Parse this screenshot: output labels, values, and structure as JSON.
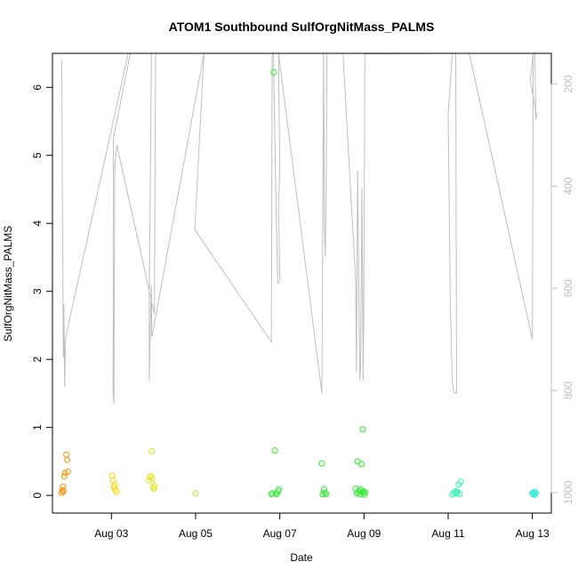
{
  "chart_data": {
    "type": "scatter",
    "title": "ATOM1 Southbound SulfOrgNitMass_PALMS",
    "xlabel": "Date",
    "ylabel": "SulfOrgNitMass_PALMS",
    "x_ticks": [
      "Aug 03",
      "Aug 05",
      "Aug 07",
      "Aug 09",
      "Aug 11",
      "Aug 13"
    ],
    "x_tick_values": [
      2,
      4,
      6,
      8,
      10,
      12
    ],
    "xlim": [
      0.6,
      12.45
    ],
    "ylim": [
      -0.26,
      6.5
    ],
    "y_ticks": [
      0,
      1,
      2,
      3,
      4,
      5,
      6
    ],
    "y2_ticks": [
      200,
      400,
      600,
      800,
      1000
    ],
    "y2lim": [
      1040,
      140
    ],
    "y2_reversed": true,
    "grid": false,
    "legend": "none",
    "colors": {
      "axis": "#000000",
      "secondary_line": "#bebebe",
      "secondary_axis_text": "#bebebe"
    },
    "series": [
      {
        "marker": "open-circle",
        "color": "#ff8c00",
        "points": [
          [
            0.82,
            0.04
          ],
          [
            0.84,
            0.08
          ],
          [
            0.85,
            0.13
          ],
          [
            0.86,
            0.06
          ],
          [
            0.88,
            0.28
          ],
          [
            0.9,
            0.33
          ],
          [
            0.93,
            0.6
          ],
          [
            0.95,
            0.52
          ],
          [
            0.97,
            0.35
          ]
        ]
      },
      {
        "marker": "open-circle",
        "color": "#ffd700",
        "points": [
          [
            2.02,
            0.29
          ],
          [
            2.04,
            0.22
          ],
          [
            2.06,
            0.12
          ],
          [
            2.08,
            0.15
          ],
          [
            2.1,
            0.08
          ],
          [
            2.12,
            0.05
          ]
        ]
      },
      {
        "marker": "open-circle",
        "color": "#dfe619",
        "points": [
          [
            2.9,
            0.22
          ],
          [
            2.92,
            0.27
          ],
          [
            2.94,
            0.28
          ],
          [
            2.96,
            0.65
          ],
          [
            2.97,
            0.24
          ],
          [
            2.99,
            0.12
          ],
          [
            3.01,
            0.1
          ],
          [
            3.03,
            0.14
          ]
        ]
      },
      {
        "marker": "open-circle",
        "color": "#a9ec19",
        "points": [
          [
            4.0,
            0.03
          ]
        ]
      },
      {
        "marker": "open-circle",
        "color": "#33ee33",
        "points": [
          [
            5.8,
            0.02
          ],
          [
            5.83,
            0.03
          ],
          [
            5.86,
            6.22
          ],
          [
            5.88,
            0.66
          ],
          [
            5.9,
            0.03
          ],
          [
            5.93,
            0.02
          ],
          [
            5.96,
            0.06
          ],
          [
            5.98,
            0.09
          ]
        ]
      },
      {
        "marker": "open-circle",
        "color": "#22f022",
        "points": [
          [
            7.0,
            0.47
          ],
          [
            7.02,
            0.02
          ],
          [
            7.05,
            0.09
          ],
          [
            7.07,
            0.04
          ],
          [
            7.1,
            0.02
          ],
          [
            7.8,
            0.1
          ],
          [
            7.83,
            0.03
          ],
          [
            7.85,
            0.5
          ],
          [
            7.88,
            0.06
          ],
          [
            7.9,
            0.02
          ],
          [
            7.92,
            0.09
          ],
          [
            7.94,
            0.46
          ],
          [
            7.96,
            0.06
          ],
          [
            7.97,
            0.97
          ],
          [
            7.99,
            0.04
          ],
          [
            8.01,
            0.01
          ],
          [
            8.03,
            0.05
          ]
        ]
      },
      {
        "marker": "open-circle",
        "color": "#2af7b3",
        "points": [
          [
            10.1,
            0.01
          ],
          [
            10.14,
            0.04
          ],
          [
            10.18,
            0.06
          ],
          [
            10.2,
            0.03
          ],
          [
            10.22,
            0.05
          ],
          [
            10.25,
            0.16
          ],
          [
            10.27,
            0.02
          ],
          [
            10.3,
            0.2
          ]
        ]
      },
      {
        "marker": "open-circle",
        "color": "#22ecd0",
        "points": [
          [
            12.0,
            0.03
          ],
          [
            12.02,
            0.02
          ],
          [
            12.04,
            0.05
          ],
          [
            12.06,
            0.01
          ],
          [
            12.08,
            0.04
          ]
        ]
      }
    ],
    "secondary_line": {
      "name": "",
      "color": "#bebebe",
      "axis": "right",
      "points": [
        [
          0.82,
          153
        ],
        [
          0.82,
          180
        ],
        [
          0.83,
          306
        ],
        [
          0.84,
          491
        ],
        [
          0.86,
          735
        ],
        [
          0.87,
          632
        ],
        [
          0.89,
          793
        ],
        [
          0.91,
          697
        ],
        [
          2.4,
          140
        ],
        [
          2.45,
          140
        ],
        [
          2.06,
          301
        ],
        [
          2.05,
          307
        ],
        [
          2.04,
          798
        ],
        [
          2.06,
          827
        ],
        [
          2.08,
          357
        ],
        [
          2.13,
          319
        ],
        [
          3.02,
          650
        ],
        [
          3.05,
          140
        ],
        [
          2.95,
          140
        ],
        [
          2.9,
          611
        ],
        [
          2.9,
          781
        ],
        [
          2.92,
          698
        ],
        [
          2.95,
          595
        ],
        [
          2.96,
          696
        ],
        [
          4.2,
          140
        ],
        [
          3.98,
          485
        ],
        [
          5.8,
          705
        ],
        [
          5.82,
          140
        ],
        [
          5.85,
          140
        ],
        [
          5.9,
          387
        ],
        [
          5.95,
          590
        ],
        [
          6.0,
          586
        ],
        [
          5.97,
          435
        ],
        [
          6.0,
          369
        ],
        [
          5.97,
          140
        ],
        [
          7.0,
          805
        ],
        [
          7.04,
          140
        ],
        [
          7.06,
          477
        ],
        [
          7.08,
          538
        ],
        [
          7.1,
          435
        ],
        [
          7.12,
          140
        ],
        [
          7.5,
          140
        ],
        [
          7.8,
          582
        ],
        [
          7.82,
          764
        ],
        [
          7.85,
          370
        ],
        [
          7.9,
          780
        ],
        [
          7.92,
          755
        ],
        [
          7.95,
          403
        ],
        [
          7.98,
          781
        ],
        [
          8.0,
          566
        ],
        [
          8.02,
          141
        ],
        [
          10.1,
          140
        ],
        [
          10.0,
          258
        ],
        [
          10.05,
          632
        ],
        [
          10.1,
          785
        ],
        [
          10.14,
          805
        ],
        [
          10.2,
          805
        ],
        [
          10.18,
          140
        ],
        [
          10.2,
          140
        ],
        [
          10.5,
          140
        ],
        [
          12.0,
          700
        ],
        [
          12.02,
          140
        ],
        [
          12.06,
          140
        ],
        [
          12.08,
          270
        ],
        [
          12.1,
          261
        ],
        [
          11.95,
          192
        ],
        [
          12.02,
          140
        ]
      ]
    }
  }
}
